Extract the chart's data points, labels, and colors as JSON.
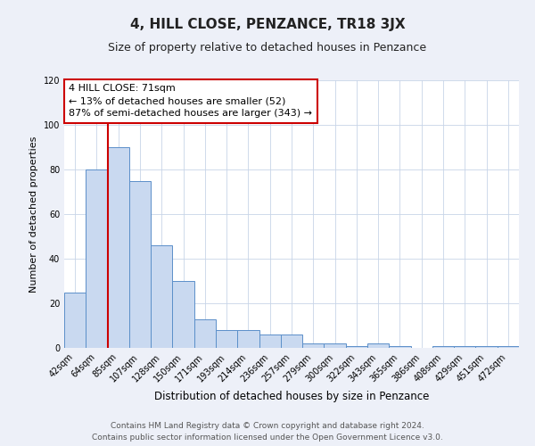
{
  "title": "4, HILL CLOSE, PENZANCE, TR18 3JX",
  "subtitle": "Size of property relative to detached houses in Penzance",
  "xlabel": "Distribution of detached houses by size in Penzance",
  "ylabel": "Number of detached properties",
  "bin_labels": [
    "42sqm",
    "64sqm",
    "85sqm",
    "107sqm",
    "128sqm",
    "150sqm",
    "171sqm",
    "193sqm",
    "214sqm",
    "236sqm",
    "257sqm",
    "279sqm",
    "300sqm",
    "322sqm",
    "343sqm",
    "365sqm",
    "386sqm",
    "408sqm",
    "429sqm",
    "451sqm",
    "472sqm"
  ],
  "bar_values": [
    25,
    80,
    90,
    75,
    46,
    30,
    13,
    8,
    8,
    6,
    6,
    2,
    2,
    1,
    2,
    1,
    0,
    1,
    1,
    1,
    1
  ],
  "bar_color": "#c9d9f0",
  "bar_edge_color": "#5b8fc9",
  "vline_color": "#cc0000",
  "vline_x_index": 1.5,
  "annotation_line1": "4 HILL CLOSE: 71sqm",
  "annotation_line2": "← 13% of detached houses are smaller (52)",
  "annotation_line3": "87% of semi-detached houses are larger (343) →",
  "annotation_box_color": "#cc0000",
  "ylim": [
    0,
    120
  ],
  "yticks": [
    0,
    20,
    40,
    60,
    80,
    100,
    120
  ],
  "bg_color": "#edf0f8",
  "plot_bg_color": "#ffffff",
  "footer_line1": "Contains HM Land Registry data © Crown copyright and database right 2024.",
  "footer_line2": "Contains public sector information licensed under the Open Government Licence v3.0.",
  "title_fontsize": 11,
  "subtitle_fontsize": 9,
  "xlabel_fontsize": 8.5,
  "ylabel_fontsize": 8,
  "tick_fontsize": 7,
  "annotation_fontsize": 8,
  "footer_fontsize": 6.5,
  "grid_color": "#c8d4e8"
}
